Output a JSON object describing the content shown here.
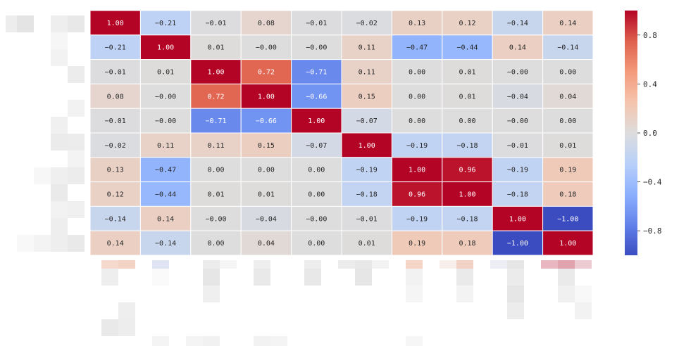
{
  "chart_data": {
    "type": "heatmap",
    "title": "",
    "xlabel": "",
    "ylabel": "",
    "row_labels": [],
    "col_labels": [],
    "values": [
      [
        1.0,
        -0.21,
        -0.01,
        0.08,
        -0.01,
        -0.02,
        0.13,
        0.12,
        -0.14,
        0.14
      ],
      [
        -0.21,
        1.0,
        0.01,
        -0.0,
        -0.0,
        0.11,
        -0.47,
        -0.44,
        0.14,
        -0.14
      ],
      [
        -0.01,
        0.01,
        1.0,
        0.72,
        -0.71,
        0.11,
        0.0,
        0.01,
        -0.0,
        0.0
      ],
      [
        0.08,
        -0.0,
        0.72,
        1.0,
        -0.66,
        0.15,
        0.0,
        0.01,
        -0.04,
        0.04
      ],
      [
        -0.01,
        -0.0,
        -0.71,
        -0.66,
        1.0,
        -0.07,
        0.0,
        0.0,
        -0.0,
        0.0
      ],
      [
        -0.02,
        0.11,
        0.11,
        0.15,
        -0.07,
        1.0,
        -0.19,
        -0.18,
        -0.01,
        0.01
      ],
      [
        0.13,
        -0.47,
        0.0,
        0.0,
        0.0,
        -0.19,
        1.0,
        0.96,
        -0.19,
        0.19
      ],
      [
        0.12,
        -0.44,
        0.01,
        0.01,
        0.0,
        -0.18,
        0.96,
        1.0,
        -0.18,
        0.18
      ],
      [
        -0.14,
        0.14,
        -0.0,
        -0.04,
        -0.0,
        -0.01,
        -0.19,
        -0.18,
        1.0,
        -1.0
      ],
      [
        0.14,
        -0.14,
        0.0,
        0.04,
        0.0,
        0.01,
        0.19,
        0.18,
        -1.0,
        1.0
      ]
    ],
    "value_format": "2 decimals",
    "vmin": -1.0,
    "vmax": 1.0,
    "colormap": "coolwarm",
    "annotations": true,
    "cell_border_color": "#ffffff",
    "colorbar": {
      "placement": "right",
      "ticks": [
        0.8,
        0.4,
        0.0,
        -0.4,
        -0.8
      ],
      "tick_labels": [
        "0.8",
        "0.4",
        "0.0",
        "−0.4",
        "−0.8"
      ]
    }
  }
}
